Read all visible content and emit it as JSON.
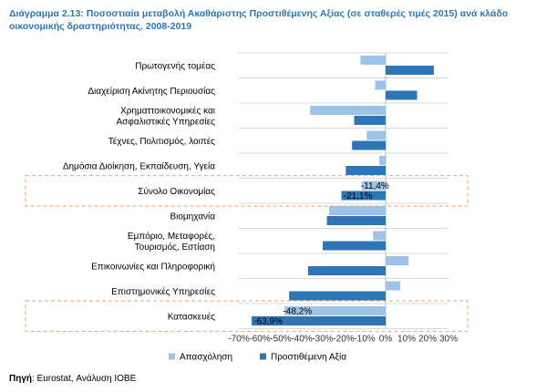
{
  "title": "Διάγραμμα 2.13: Ποσοστιαία μεταβολή Ακαθάριστης Προστιθέμενης Αξίας (σε σταθερές τιμές 2015) ανά κλάδο οικονομικής δραστηριότητας, 2008-2019",
  "source": {
    "label": "Πηγή",
    "text": ": Eurostat, Ανάλυση ΙΟΒΕ"
  },
  "colors": {
    "employment": "#9dc3e6",
    "gva": "#2e75b6",
    "highlight": "#f4b183",
    "grid": "#d9d9d9"
  },
  "chart_data": {
    "type": "bar",
    "orientation": "horizontal",
    "categories": [
      "Πρωτογενής τομέας",
      "Διαχείριση Ακίνητης Περιουσίας",
      "Χρηματτοικονομικές και Ασφαλιστικές Υπηρεσίες",
      "Τέχνες, Πολιτισμός, λοιπές",
      "Δημόσια Διοίκηση, Εκπαίδευση, Υγεία",
      "Σύνολο Οικονομίας",
      "Βιομηχανία",
      "Εμπόριο, Μεταφορές, Τουρισμός, Εστίαση",
      "Επικοινωνίες και Πληροφορική",
      "Επιστημονικές Υπηρεσίες",
      "Κατασκευές"
    ],
    "series": [
      {
        "name": "Απασχόληση",
        "values": [
          -12,
          -5,
          -36,
          -9,
          -3,
          -11.4,
          -27,
          -6,
          11,
          7,
          -48.2
        ]
      },
      {
        "name": "Προστιθέμενη Αξία",
        "values": [
          23,
          15,
          -15,
          -16,
          -19,
          -21.1,
          -28,
          -30,
          -37,
          -46,
          -63.9
        ]
      }
    ],
    "data_labels": [
      {
        "category": 5,
        "series": 0,
        "text": "-11,4%"
      },
      {
        "category": 5,
        "series": 1,
        "text": "-21,1%"
      },
      {
        "category": 10,
        "series": 0,
        "text": "-48,2%"
      },
      {
        "category": 10,
        "series": 1,
        "text": "-63,9%"
      }
    ],
    "highlighted_categories": [
      5,
      10
    ],
    "xlim": [
      -70,
      30
    ],
    "xticks": [
      -70,
      -60,
      -50,
      -40,
      -30,
      -20,
      -10,
      0,
      10,
      20,
      30
    ],
    "xtick_labels": [
      "-70%",
      "-60%",
      "-50%",
      "-40%",
      "-30%",
      "-20%",
      "-10%",
      "0%",
      "10%",
      "20%",
      "30%"
    ],
    "grid": true,
    "legend": "bottom"
  }
}
